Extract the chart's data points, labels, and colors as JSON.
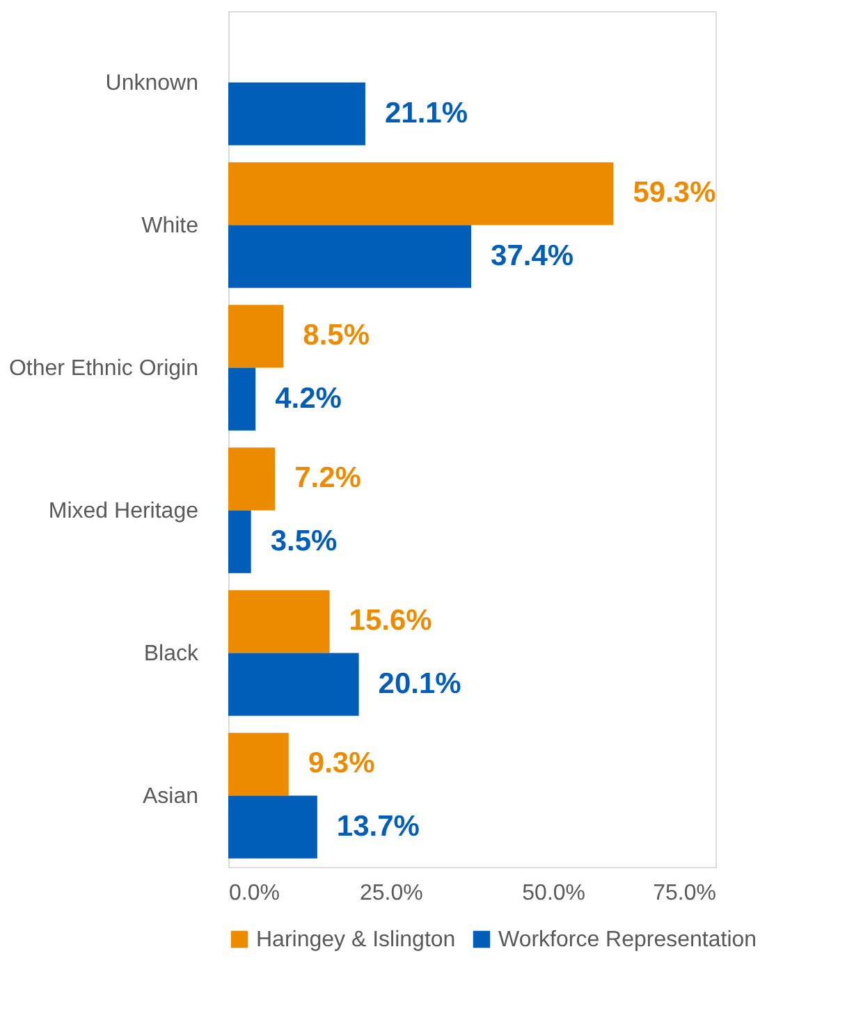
{
  "chart_data": {
    "type": "bar",
    "orientation": "horizontal",
    "categories": [
      "Unknown",
      "White",
      "Other Ethnic Origin",
      "Mixed Heritage",
      "Black",
      "Asian"
    ],
    "series": [
      {
        "name": "Haringey & Islington",
        "color": "#ed8b00",
        "values": [
          null,
          59.3,
          8.5,
          7.2,
          15.6,
          9.3
        ],
        "value_labels": [
          null,
          "59.3%",
          "8.5%",
          "7.2%",
          "15.6%",
          "9.3%"
        ]
      },
      {
        "name": "Workforce Representation",
        "color": "#005eb8",
        "values": [
          21.1,
          37.4,
          4.2,
          3.5,
          20.1,
          13.7
        ],
        "value_labels": [
          "21.1%",
          "37.4%",
          "4.2%",
          "3.5%",
          "20.1%",
          "13.7%"
        ]
      }
    ],
    "xlim": [
      0,
      75
    ],
    "xticks": [
      {
        "value": 0,
        "label": "0.0%"
      },
      {
        "value": 25,
        "label": "25.0%"
      },
      {
        "value": 50,
        "label": "50.0%"
      },
      {
        "value": 75,
        "label": "75.0%"
      }
    ],
    "grid": false,
    "legend": "bottom"
  }
}
